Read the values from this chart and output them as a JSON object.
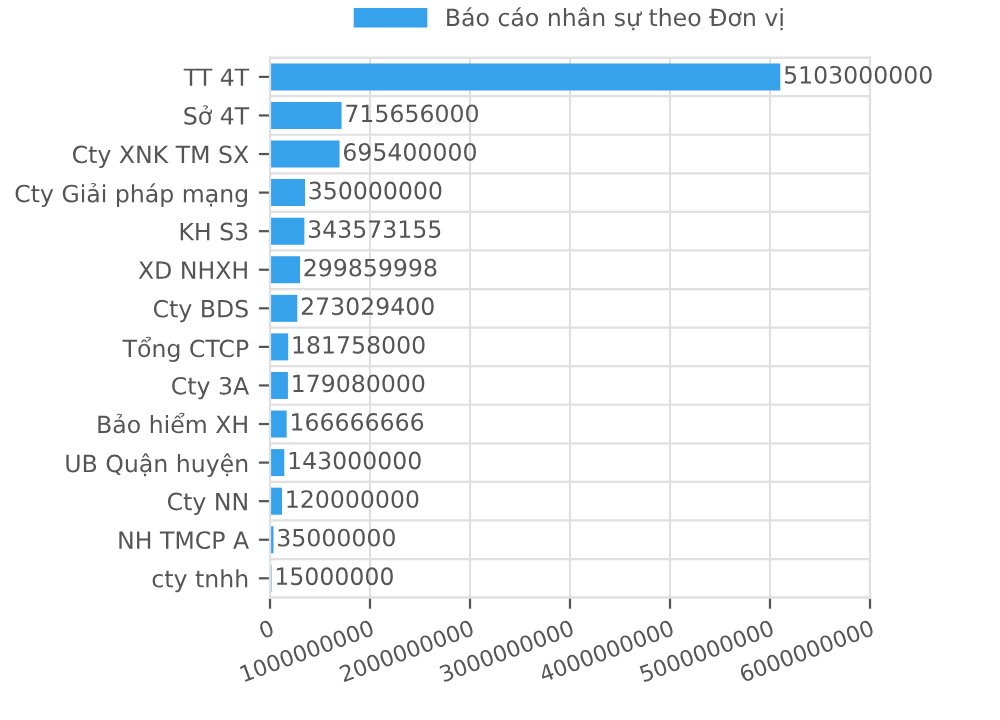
{
  "chart_data": {
    "type": "bar",
    "orientation": "horizontal",
    "categories": [
      "TT 4T",
      "Sở 4T",
      "Cty XNK TM SX",
      "Cty Giải pháp mạng",
      "KH S3",
      "XD NHXH",
      "Cty BDS",
      "Tổng CTCP",
      "Cty 3A",
      "Bảo hiểm XH",
      "UB Quận huyện",
      "Cty NN",
      "NH TMCP A",
      "cty tnhh"
    ],
    "series": [
      {
        "name": "Báo cáo nhân sự theo Đơn vị",
        "color": "#36a2eb",
        "values": [
          5103000000,
          715656000,
          695400000,
          350000000,
          343573155,
          299859998,
          273029400,
          181758000,
          179080000,
          166666666,
          143000000,
          120000000,
          35000000,
          15000000
        ]
      }
    ],
    "data_labels": true,
    "xlim": [
      0,
      6000000000
    ],
    "xticks": [
      0,
      1000000000,
      2000000000,
      3000000000,
      4000000000,
      5000000000,
      6000000000
    ],
    "grid": true,
    "legend": "top"
  }
}
